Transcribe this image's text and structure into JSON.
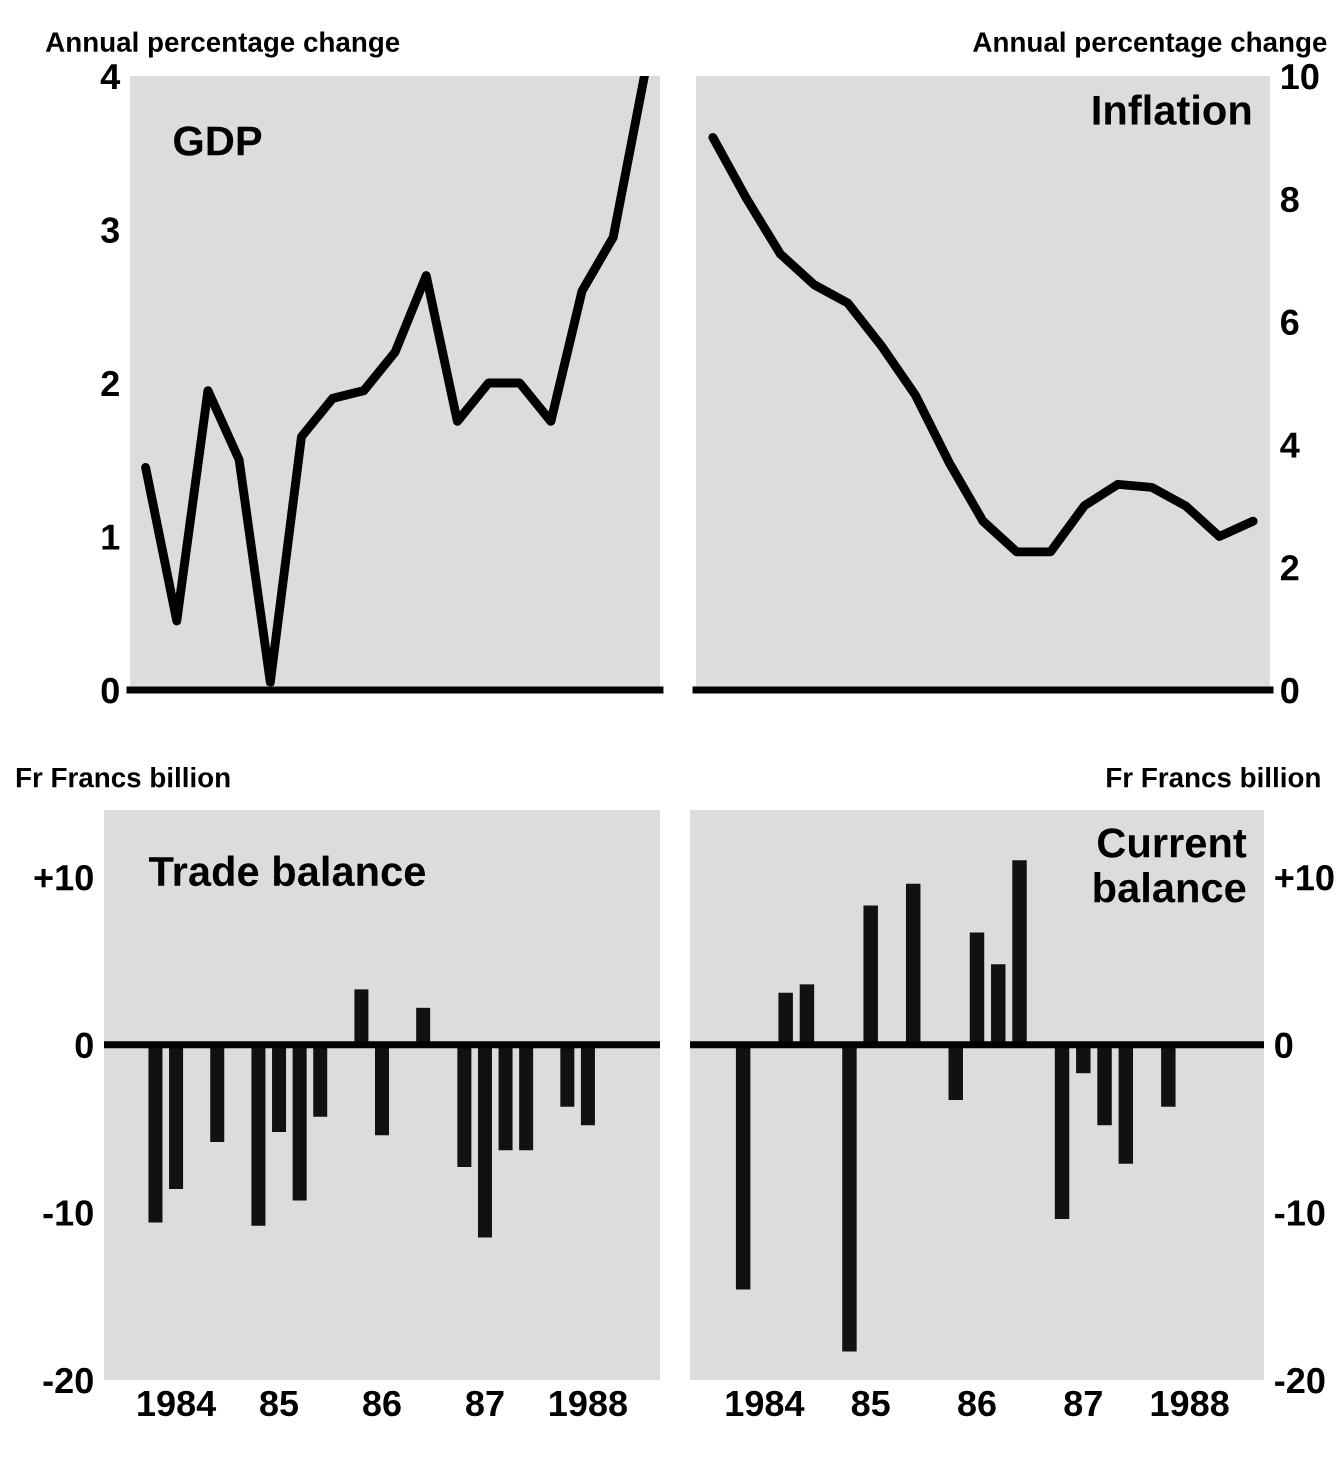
{
  "chart_data": [
    {
      "type": "line",
      "title": "GDP",
      "ylabel": "Annual percentage change",
      "categories": [
        null,
        null,
        null,
        null,
        null,
        null,
        null,
        null,
        null,
        null,
        null,
        null,
        null,
        null,
        null,
        null,
        null
      ],
      "ylim": [
        0,
        4
      ],
      "yticks": [
        0,
        1,
        2,
        3,
        4
      ],
      "tick_labels": "y",
      "series": [
        {
          "color": "#000000",
          "values": [
            1.45,
            0.45,
            1.95,
            1.5,
            0.05,
            1.65,
            1.9,
            1.95,
            2.2,
            2.7,
            1.75,
            2.0,
            2.0,
            1.75,
            2.6,
            2.95,
            4.0
          ]
        }
      ]
    },
    {
      "type": "line",
      "title": "Inflation",
      "ylabel": "Annual percentage change",
      "categories": [
        null,
        null,
        null,
        null,
        null,
        null,
        null,
        null,
        null,
        null,
        null,
        null,
        null,
        null,
        null,
        null,
        null
      ],
      "ylim": [
        0,
        10
      ],
      "yticks": [
        0,
        2,
        4,
        6,
        8,
        10
      ],
      "tick_labels": "y",
      "series": [
        {
          "color": "#000000",
          "values": [
            9.0,
            8.0,
            7.1,
            6.6,
            6.3,
            5.6,
            4.8,
            3.7,
            2.75,
            2.25,
            2.25,
            3.0,
            3.35,
            3.3,
            3.0,
            2.5,
            2.75
          ]
        }
      ]
    },
    {
      "type": "bar",
      "title": "Trade balance",
      "ylabel": "Fr Francs billion",
      "categories": [
        null,
        null,
        null,
        "1984",
        null,
        null,
        null,
        null,
        "85",
        null,
        null,
        null,
        null,
        "86",
        null,
        null,
        null,
        null,
        "87",
        null,
        null,
        null,
        null,
        "1988",
        null,
        null,
        null
      ],
      "ylim": [
        -20,
        14
      ],
      "yticks": [
        {
          "value": 10,
          "label": "+10"
        },
        0,
        -10,
        -20
      ],
      "ref_lines": [
        {
          "axis": "y",
          "value": 0,
          "color": "#000000"
        }
      ],
      "series": [
        {
          "color": "#111111",
          "values": [
            null,
            null,
            -10.6,
            -8.6,
            null,
            -5.8,
            null,
            -10.8,
            -5.2,
            -9.3,
            -4.3,
            null,
            3.3,
            -5.4,
            null,
            2.2,
            null,
            -7.3,
            -11.5,
            -6.3,
            -6.3,
            null,
            -3.7,
            -4.8,
            null,
            null,
            null
          ]
        }
      ]
    },
    {
      "type": "bar",
      "title": "Current balance",
      "ylabel": "Fr Francs billion",
      "categories": [
        null,
        null,
        null,
        "1984",
        null,
        null,
        null,
        null,
        "85",
        null,
        null,
        null,
        null,
        "86",
        null,
        null,
        null,
        null,
        "87",
        null,
        null,
        null,
        null,
        "1988",
        null,
        null,
        null
      ],
      "ylim": [
        -20,
        14
      ],
      "yticks": [
        {
          "value": 10,
          "label": "+10"
        },
        0,
        -10,
        -20
      ],
      "ref_lines": [
        {
          "axis": "y",
          "value": 0,
          "color": "#000000"
        }
      ],
      "series": [
        {
          "color": "#111111",
          "values": [
            null,
            null,
            -14.6,
            null,
            3.1,
            3.6,
            null,
            -18.3,
            8.3,
            null,
            9.6,
            null,
            -3.3,
            6.7,
            4.8,
            11.0,
            null,
            -10.4,
            -1.7,
            -4.8,
            -7.1,
            null,
            -3.7,
            null,
            null,
            null,
            null
          ]
        }
      ]
    }
  ]
}
